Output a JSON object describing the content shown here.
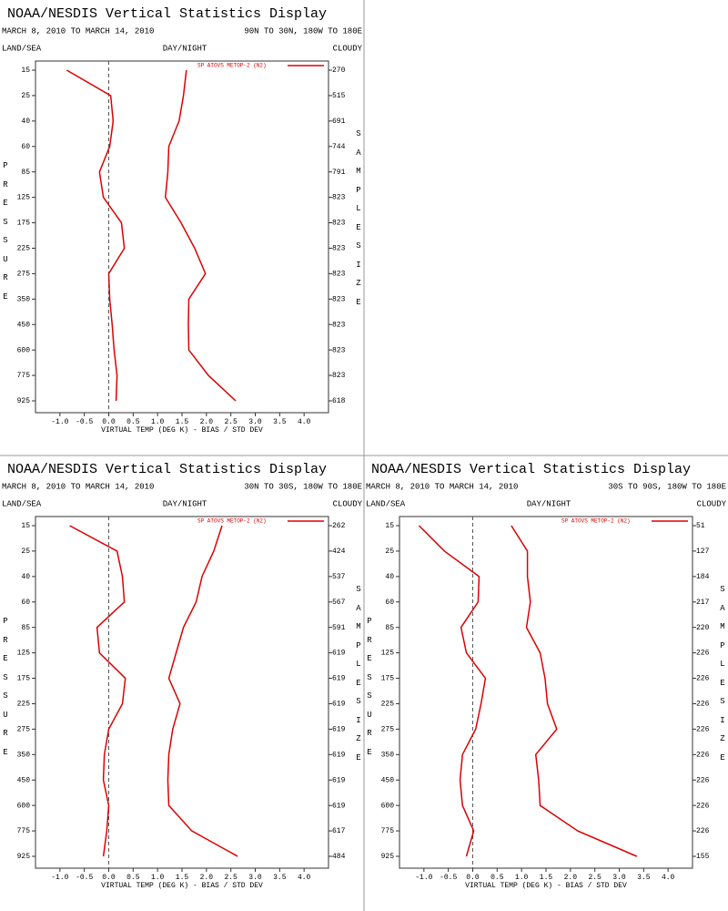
{
  "chart_data": [
    {
      "type": "line",
      "title": "NOAA/NESDIS Vertical Statistics Display",
      "subtitle": "MARCH 8, 2010 TO MARCH 14, 2010",
      "region": "90N TO 30N, 180W TO 180E",
      "land_sea_label": "LAND/SEA",
      "day_night_label": "DAY/NIGHT",
      "cloudy_label": "CLOUDY",
      "y_label": "PRESSURE",
      "y2_label": "SAMPLE SIZE",
      "x_label": "VIRTUAL TEMP (DEG K) - BIAS / STD DEV",
      "categories": [
        15,
        25,
        40,
        60,
        85,
        125,
        175,
        225,
        275,
        350,
        450,
        600,
        775,
        925
      ],
      "sample_size": [
        270,
        515,
        691,
        744,
        791,
        823,
        823,
        823,
        823,
        823,
        823,
        823,
        823,
        618
      ],
      "series": [
        {
          "name": "SP ATOVS METOP-2 (N2)",
          "color": "#dd0000",
          "bias": [
            -0.86,
            0.04,
            0.09,
            0.02,
            -0.19,
            -0.11,
            0.26,
            0.32,
            0.0,
            0.02,
            0.07,
            0.11,
            0.17,
            0.15
          ],
          "std_dev": [
            1.59,
            1.53,
            1.44,
            1.23,
            1.21,
            1.16,
            1.48,
            1.76,
            1.98,
            1.64,
            1.63,
            1.64,
            2.04,
            2.6
          ]
        }
      ],
      "xlim": [
        -1.5,
        4.5
      ],
      "xticks": [
        {
          "value": -1,
          "label": "-1.0"
        },
        {
          "value": -0.5,
          "label": "-0.5"
        },
        {
          "value": 0,
          "label": "0.0"
        },
        {
          "value": 0.5,
          "label": "0.5"
        },
        {
          "value": 1,
          "label": "1.0"
        },
        {
          "value": 1.5,
          "label": "1.5"
        },
        {
          "value": 2,
          "label": "2.0"
        },
        {
          "value": 2.5,
          "label": "2.5"
        },
        {
          "value": 3,
          "label": "3.0"
        },
        {
          "value": 3.5,
          "label": "3.5"
        },
        {
          "value": 4,
          "label": "4.0"
        }
      ],
      "zero_line": true
    },
    {
      "type": "line",
      "title": "NOAA/NESDIS Vertical Statistics Display",
      "subtitle": "MARCH 8, 2010 TO MARCH 14, 2010",
      "region": "30N TO 30S, 180W TO 180E",
      "land_sea_label": "LAND/SEA",
      "day_night_label": "DAY/NIGHT",
      "cloudy_label": "CLOUDY",
      "y_label": "PRESSURE",
      "y2_label": "SAMPLE SIZE",
      "x_label": "VIRTUAL TEMP (DEG K) - BIAS / STD DEV",
      "categories": [
        15,
        25,
        40,
        60,
        85,
        125,
        175,
        225,
        275,
        350,
        450,
        600,
        775,
        925
      ],
      "sample_size": [
        262,
        424,
        537,
        567,
        591,
        619,
        619,
        619,
        619,
        619,
        619,
        619,
        617,
        484
      ],
      "series": [
        {
          "name": "SP ATOVS METOP-2 (N2)",
          "color": "#dd0000",
          "bias": [
            -0.8,
            0.17,
            0.28,
            0.32,
            -0.24,
            -0.19,
            0.34,
            0.28,
            0.0,
            -0.09,
            -0.11,
            0.0,
            -0.04,
            -0.11
          ],
          "std_dev": [
            2.32,
            2.15,
            1.91,
            1.79,
            1.53,
            1.38,
            1.23,
            1.46,
            1.31,
            1.23,
            1.21,
            1.23,
            1.7,
            2.64
          ]
        }
      ],
      "xlim": [
        -1.5,
        4.5
      ],
      "xticks": [
        {
          "value": -1,
          "label": "-1.0"
        },
        {
          "value": -0.5,
          "label": "-0.5"
        },
        {
          "value": 0,
          "label": "0.0"
        },
        {
          "value": 0.5,
          "label": "0.5"
        },
        {
          "value": 1,
          "label": "1.0"
        },
        {
          "value": 1.5,
          "label": "1.5"
        },
        {
          "value": 2,
          "label": "2.0"
        },
        {
          "value": 2.5,
          "label": "2.5"
        },
        {
          "value": 3,
          "label": "3.0"
        },
        {
          "value": 3.5,
          "label": "3.5"
        },
        {
          "value": 4,
          "label": "4.0"
        }
      ],
      "zero_line": true
    },
    {
      "type": "line",
      "title": "NOAA/NESDIS Vertical Statistics Display",
      "subtitle": "MARCH 8, 2010 TO MARCH 14, 2010",
      "region": "30S TO 90S, 180W TO 180E",
      "land_sea_label": "LAND/SEA",
      "day_night_label": "DAY/NIGHT",
      "cloudy_label": "CLOUDY",
      "y_label": "PRESSURE",
      "y2_label": "SAMPLE SIZE",
      "x_label": "VIRTUAL TEMP (DEG K) - BIAS / STD DEV",
      "categories": [
        15,
        25,
        40,
        60,
        85,
        125,
        175,
        225,
        275,
        350,
        450,
        600,
        775,
        925
      ],
      "sample_size": [
        51,
        127,
        184,
        217,
        220,
        226,
        226,
        226,
        226,
        226,
        226,
        226,
        226,
        155
      ],
      "series": [
        {
          "name": "SP ATOVS METOP-2 (N2)",
          "color": "#dd0000",
          "bias": [
            -1.1,
            -0.58,
            0.13,
            0.11,
            -0.24,
            -0.13,
            0.26,
            0.17,
            0.06,
            -0.21,
            -0.26,
            -0.21,
            0.02,
            -0.13
          ],
          "std_dev": [
            0.79,
            1.12,
            1.12,
            1.18,
            1.1,
            1.38,
            1.48,
            1.53,
            1.72,
            1.29,
            1.35,
            1.38,
            2.15,
            3.36
          ]
        }
      ],
      "xlim": [
        -1.5,
        4.5
      ],
      "xticks": [
        {
          "value": -1,
          "label": "-1.0"
        },
        {
          "value": -0.5,
          "label": "-0.5"
        },
        {
          "value": 0,
          "label": "0.0"
        },
        {
          "value": 0.5,
          "label": "0.5"
        },
        {
          "value": 1,
          "label": "1.0"
        },
        {
          "value": 1.5,
          "label": "1.5"
        },
        {
          "value": 2,
          "label": "2.0"
        },
        {
          "value": 2.5,
          "label": "2.5"
        },
        {
          "value": 3,
          "label": "3.0"
        },
        {
          "value": 3.5,
          "label": "3.5"
        },
        {
          "value": 4,
          "label": "4.0"
        }
      ],
      "zero_line": true
    }
  ]
}
